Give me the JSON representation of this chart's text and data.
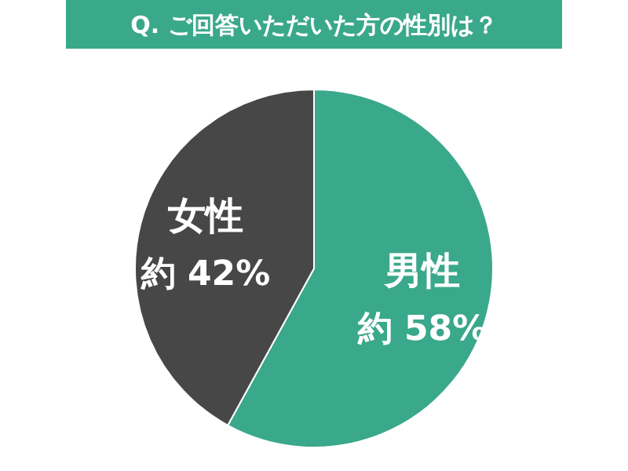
{
  "chart_data": {
    "type": "pie",
    "title": "Q. ご回答いただいた方の性別は？",
    "categories": [
      "男性",
      "女性"
    ],
    "values": [
      58,
      42
    ],
    "value_labels": [
      "約 58%",
      "約 42%"
    ],
    "colors": [
      "#3aa88a",
      "#474747"
    ]
  }
}
